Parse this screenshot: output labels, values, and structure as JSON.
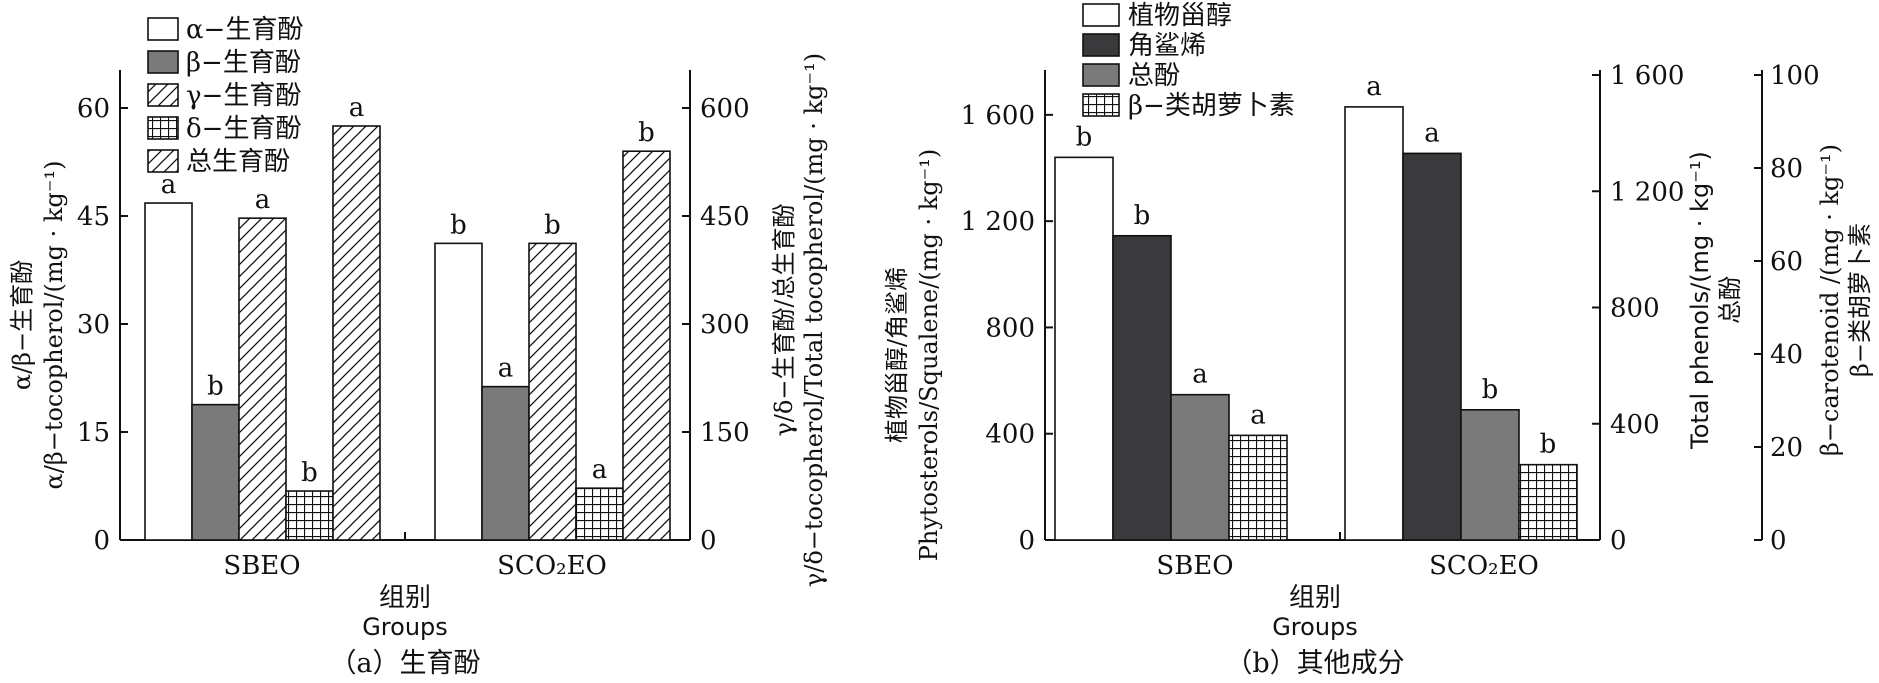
{
  "figure": {
    "caption_a": "（a）生育酚",
    "caption_b": "（b）其他成分"
  },
  "chart_data": [
    {
      "type": "bar",
      "panel": "a",
      "caption": "（a）生育酚",
      "categories": [
        "SBEO",
        "SCO₂EO"
      ],
      "xlabel": "组别",
      "xlabel_en": "Groups",
      "left_axis": {
        "label": "α/β−生育酚",
        "label_en": "α/β−tocopherol/(mg · kg⁻¹)",
        "range": [
          0,
          60
        ],
        "ticks": [
          0,
          15,
          30,
          45,
          60
        ],
        "tick_labels": [
          "0",
          "15",
          "30",
          "45",
          "60"
        ]
      },
      "right_axis": {
        "label": "γ/δ−生育酚/总生育酚",
        "label_en": "γ/δ−tocopherol/Total tocopherol/(mg · kg⁻¹)",
        "range": [
          0,
          600
        ],
        "ticks": [
          0,
          150,
          300,
          450,
          600
        ],
        "tick_labels": [
          "0",
          "150",
          "300",
          "450",
          "600"
        ]
      },
      "series": [
        {
          "name": "α−生育酚",
          "axis": "left",
          "pattern": "white",
          "values": [
            46.8,
            41.2
          ],
          "letters": [
            "a",
            "b"
          ]
        },
        {
          "name": "β−生育酚",
          "axis": "left",
          "pattern": "gray",
          "values": [
            18.8,
            21.3
          ],
          "letters": [
            "b",
            "a"
          ]
        },
        {
          "name": "γ−生育酚",
          "axis": "right",
          "pattern": "hatch",
          "values": [
            447,
            412
          ],
          "letters": [
            "a",
            "b"
          ]
        },
        {
          "name": "δ−生育酚",
          "axis": "right",
          "pattern": "grid",
          "values": [
            68,
            72
          ],
          "letters": [
            "b",
            "a"
          ]
        },
        {
          "name": "总生育酚",
          "axis": "right",
          "pattern": "hatch",
          "values": [
            575,
            540
          ],
          "letters": [
            "a",
            "b"
          ]
        }
      ]
    },
    {
      "type": "bar",
      "panel": "b",
      "caption": "（b）其他成分",
      "categories": [
        "SBEO",
        "SCO₂EO"
      ],
      "xlabel": "组别",
      "xlabel_en": "Groups",
      "left_axis": {
        "label": "植物甾醇/角鲨烯",
        "label_en": "Phytosterols/Squalene/(mg · kg⁻¹)",
        "range": [
          0,
          1750
        ],
        "ticks": [
          0,
          400,
          800,
          1200,
          1600
        ],
        "tick_labels": [
          "0",
          "400",
          "800",
          "1 200",
          "1 600"
        ]
      },
      "right_axis_1": {
        "label": "总酚",
        "label_en": "Total phenols/(mg · kg⁻¹)",
        "range": [
          0,
          1600
        ],
        "ticks": [
          0,
          400,
          800,
          1200,
          1600
        ],
        "tick_labels": [
          "0",
          "400",
          "800",
          "1 200",
          "1 600"
        ]
      },
      "right_axis_2": {
        "label": "β−类胡萝卜素",
        "label_en": "β−carotenoid /(mg · kg⁻¹)",
        "range": [
          0,
          100
        ],
        "ticks": [
          0,
          20,
          40,
          60,
          80,
          100
        ],
        "tick_labels": [
          "0",
          "20",
          "40",
          "60",
          "80",
          "100"
        ]
      },
      "series": [
        {
          "name": "植物甾醇",
          "axis": "left",
          "pattern": "white",
          "values": [
            1440,
            1630
          ],
          "letters": [
            "b",
            "a"
          ]
        },
        {
          "name": "角鲨烯",
          "axis": "left",
          "pattern": "dark",
          "values": [
            1145,
            1455
          ],
          "letters": [
            "b",
            "a"
          ]
        },
        {
          "name": "总酚",
          "axis": "right1",
          "pattern": "gray",
          "values": [
            500,
            448
          ],
          "letters": [
            "a",
            "b"
          ]
        },
        {
          "name": "β−类胡萝卜素",
          "axis": "right2",
          "pattern": "grid",
          "values": [
            22.5,
            16.2
          ],
          "letters": [
            "a",
            "b"
          ]
        }
      ]
    }
  ]
}
